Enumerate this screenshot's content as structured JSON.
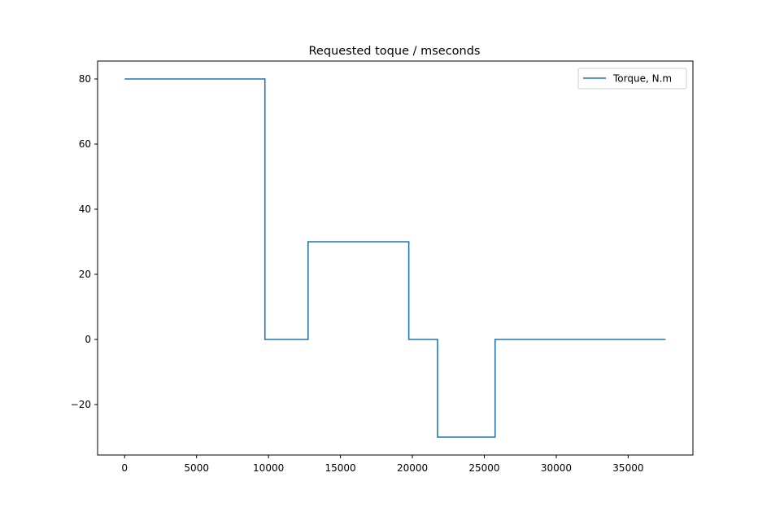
{
  "chart_data": {
    "type": "line",
    "title": "Requested toque / mseconds",
    "xlabel": "",
    "ylabel": "",
    "xlim": [
      -1880,
      39500
    ],
    "ylim": [
      -35.5,
      85.5
    ],
    "xticks": [
      0,
      5000,
      10000,
      15000,
      20000,
      25000,
      30000,
      35000
    ],
    "yticks": [
      -20,
      0,
      20,
      40,
      60,
      80
    ],
    "ytick_labels": [
      "−20",
      "0",
      "20",
      "40",
      "60",
      "80"
    ],
    "grid": false,
    "legend_position": "top-right",
    "colors": {
      "series": "#1f77b4"
    },
    "series": [
      {
        "name": "Torque, N.m",
        "x": [
          0,
          9750,
          9750,
          12750,
          12750,
          19750,
          19750,
          21750,
          21750,
          25750,
          25750,
          37600
        ],
        "y": [
          80,
          80,
          0,
          0,
          30,
          30,
          0,
          0,
          -30,
          -30,
          0,
          0
        ]
      }
    ]
  }
}
